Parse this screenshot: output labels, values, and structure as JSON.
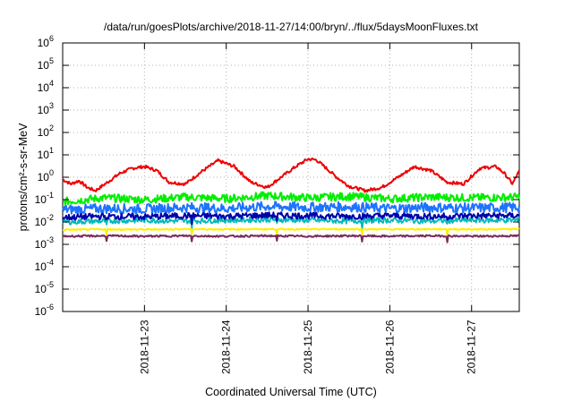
{
  "chart_data": {
    "type": "line",
    "title": "/data/run/goesPlots/archive/2018-11-27/14:00/bryn/../flux/5daysMoonFluxes.txt",
    "xlabel": "Coordinated Universal Time (UTC)",
    "ylabel": "protons/cm²-s-sr-MeV",
    "y_scale": "log",
    "ylim_exponents": [
      -6,
      6
    ],
    "y_ticks": [
      {
        "base": "10",
        "exp": "-6"
      },
      {
        "base": "10",
        "exp": "-5"
      },
      {
        "base": "10",
        "exp": "-4"
      },
      {
        "base": "10",
        "exp": "-3"
      },
      {
        "base": "10",
        "exp": "-2"
      },
      {
        "base": "10",
        "exp": "-1"
      },
      {
        "base": "10",
        "exp": "0"
      },
      {
        "base": "10",
        "exp": "1"
      },
      {
        "base": "10",
        "exp": "2"
      },
      {
        "base": "10",
        "exp": "3"
      },
      {
        "base": "10",
        "exp": "4"
      },
      {
        "base": "10",
        "exp": "5"
      },
      {
        "base": "10",
        "exp": "6"
      }
    ],
    "x_range_days": [
      "2018-11-22 00:00",
      "2018-11-27 14:00"
    ],
    "x_ticks": [
      "2018-11-23",
      "2018-11-24",
      "2018-11-25",
      "2018-11-26",
      "2018-11-27"
    ],
    "grid": true,
    "series": [
      {
        "color": "#ee0000",
        "x": [
          0,
          0.1,
          0.2,
          0.3,
          0.4,
          0.55,
          0.7,
          0.85,
          1.0,
          1.15,
          1.3,
          1.5,
          1.7,
          1.9,
          2.1,
          2.3,
          2.5,
          2.7,
          2.85,
          3.0,
          3.1,
          3.2,
          3.35,
          3.5,
          3.7,
          3.9,
          4.1,
          4.3,
          4.5,
          4.7,
          4.9,
          5.1,
          5.3,
          5.4,
          5.5,
          5.58
        ],
        "y": [
          0.8,
          0.5,
          0.7,
          0.35,
          0.25,
          0.6,
          1.5,
          2.5,
          3.0,
          2.0,
          0.6,
          0.5,
          1.8,
          5.5,
          3.0,
          0.6,
          0.35,
          1.2,
          3.0,
          6.5,
          6.0,
          3.0,
          1.0,
          0.4,
          0.25,
          0.35,
          1.0,
          3.0,
          2.0,
          0.6,
          0.5,
          2.5,
          3.0,
          1.5,
          0.5,
          1.8
        ]
      },
      {
        "color": "#00ee00",
        "x": [
          0,
          0.5,
          1.0,
          1.5,
          2.0,
          2.5,
          3.0,
          3.5,
          4.0,
          4.5,
          5.0,
          5.58
        ],
        "y": [
          0.08,
          0.12,
          0.1,
          0.13,
          0.11,
          0.15,
          0.12,
          0.14,
          0.11,
          0.13,
          0.12,
          0.13
        ]
      },
      {
        "color": "#1e73ff",
        "x": [
          0,
          0.5,
          1.0,
          1.5,
          2.0,
          2.5,
          3.0,
          3.5,
          4.0,
          4.5,
          5.0,
          5.58
        ],
        "y": [
          0.035,
          0.04,
          0.038,
          0.045,
          0.04,
          0.05,
          0.045,
          0.048,
          0.04,
          0.045,
          0.042,
          0.045
        ]
      },
      {
        "color": "#00b8b8",
        "x": [
          0,
          0.5,
          1.0,
          1.5,
          2.0,
          2.5,
          3.0,
          3.5,
          4.0,
          4.5,
          5.0,
          5.58
        ],
        "y": [
          0.01,
          0.011,
          0.012,
          0.011,
          0.012,
          0.013,
          0.012,
          0.011,
          0.012,
          0.011,
          0.012,
          0.012
        ]
      },
      {
        "color": "#0000aa",
        "x": [
          0,
          0.5,
          1.0,
          1.5,
          2.0,
          2.5,
          3.0,
          3.5,
          4.0,
          4.5,
          5.0,
          5.58
        ],
        "y": [
          0.016,
          0.018,
          0.017,
          0.019,
          0.018,
          0.02,
          0.019,
          0.018,
          0.019,
          0.018,
          0.019,
          0.019
        ]
      },
      {
        "color": "#ffee00",
        "x": [
          0,
          0.5,
          1.0,
          1.5,
          2.0,
          2.5,
          3.0,
          3.5,
          4.0,
          4.5,
          5.0,
          5.58
        ],
        "y": [
          0.0045,
          0.0047,
          0.0046,
          0.0048,
          0.0047,
          0.0048,
          0.0047,
          0.0048,
          0.0047,
          0.0048,
          0.0047,
          0.0048
        ]
      },
      {
        "color": "#7a2a5a",
        "x": [
          0,
          0.5,
          1.0,
          1.5,
          2.0,
          2.5,
          3.0,
          3.5,
          4.0,
          4.5,
          5.0,
          5.58
        ],
        "y": [
          0.0023,
          0.0024,
          0.0023,
          0.0024,
          0.0023,
          0.0024,
          0.0023,
          0.0024,
          0.0023,
          0.0024,
          0.0023,
          0.0024
        ]
      }
    ]
  }
}
